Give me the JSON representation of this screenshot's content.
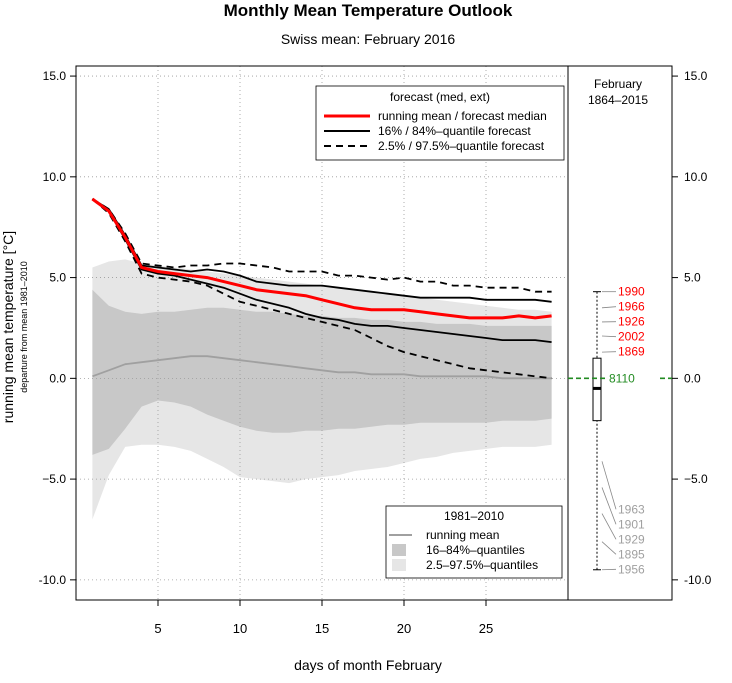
{
  "chart_data": {
    "type": "line",
    "title": "Monthly Mean Temperature Outlook",
    "subtitle": "Swiss mean: February 2016",
    "xlabel": "days of month February",
    "ylabel": "running mean temperature [°C]",
    "ylabel_sub": "departure from mean 1981–2010",
    "xlim": [
      0,
      30
    ],
    "ylim": [
      -11,
      15.5
    ],
    "xticks": [
      5,
      10,
      15,
      20,
      25
    ],
    "yticks": [
      -10,
      -5,
      0,
      5,
      10,
      15
    ],
    "ytick_labels": [
      "-10.0",
      "−5.0",
      "0.0",
      "5.0",
      "10.0",
      "15.0"
    ],
    "grid": true,
    "forecast_legend": {
      "title": "forecast (med, ext)",
      "entries": [
        "running mean / forecast median",
        "16% / 84%–quantile forecast",
        "2.5% / 97.5%–quantile forecast"
      ],
      "placement": "top-right"
    },
    "climate_legend": {
      "title": "1981–2010",
      "entries": [
        "running mean",
        "16–84%–quantiles",
        "2.5–97.5%–quantiles"
      ],
      "placement": "bottom-right"
    },
    "x": [
      1,
      2,
      3,
      4,
      5,
      6,
      7,
      8,
      9,
      10,
      11,
      12,
      13,
      14,
      15,
      16,
      17,
      18,
      19,
      20,
      21,
      22,
      23,
      24,
      25,
      26,
      27,
      28,
      29
    ],
    "series": [
      {
        "name": "running mean / forecast median",
        "color": "#ff0000",
        "style": "solid",
        "values": [
          8.9,
          8.3,
          7.0,
          5.5,
          5.3,
          5.2,
          5.1,
          5.0,
          4.8,
          4.6,
          4.4,
          4.3,
          4.2,
          4.1,
          3.9,
          3.7,
          3.5,
          3.4,
          3.4,
          3.4,
          3.3,
          3.2,
          3.1,
          3.0,
          3.0,
          3.0,
          3.1,
          3.0,
          3.1
        ]
      },
      {
        "name": "84% quantile forecast",
        "color": "#000000",
        "style": "solid",
        "values": [
          8.9,
          8.4,
          7.1,
          5.6,
          5.5,
          5.4,
          5.3,
          5.4,
          5.3,
          5.1,
          4.8,
          4.7,
          4.6,
          4.6,
          4.6,
          4.5,
          4.4,
          4.3,
          4.2,
          4.1,
          4.0,
          4.0,
          4.0,
          4.0,
          3.9,
          3.9,
          3.9,
          3.9,
          3.8
        ]
      },
      {
        "name": "16% quantile forecast",
        "color": "#000000",
        "style": "solid",
        "values": [
          8.9,
          8.3,
          6.9,
          5.4,
          5.2,
          5.1,
          4.9,
          4.7,
          4.5,
          4.2,
          3.9,
          3.7,
          3.5,
          3.2,
          3.0,
          2.9,
          2.7,
          2.6,
          2.6,
          2.5,
          2.4,
          2.3,
          2.2,
          2.1,
          2.0,
          1.9,
          1.9,
          1.9,
          1.8
        ]
      },
      {
        "name": "97.5% quantile forecast",
        "color": "#000000",
        "style": "dashed",
        "values": [
          8.9,
          8.4,
          7.2,
          5.7,
          5.6,
          5.5,
          5.6,
          5.6,
          5.7,
          5.7,
          5.6,
          5.5,
          5.3,
          5.3,
          5.3,
          5.1,
          5.1,
          5.0,
          4.9,
          5.0,
          4.8,
          4.8,
          4.6,
          4.6,
          4.5,
          4.5,
          4.5,
          4.3,
          4.3
        ]
      },
      {
        "name": "2.5% quantile forecast",
        "color": "#000000",
        "style": "dashed",
        "values": [
          8.9,
          8.2,
          6.8,
          5.2,
          5.0,
          4.9,
          4.8,
          4.6,
          4.2,
          3.8,
          3.6,
          3.4,
          3.2,
          3.0,
          2.8,
          2.6,
          2.4,
          2.0,
          1.6,
          1.3,
          1.1,
          0.9,
          0.7,
          0.5,
          0.4,
          0.3,
          0.2,
          0.1,
          0.0
        ]
      },
      {
        "name": "climate running mean",
        "color": "#a0a0a0",
        "style": "solid",
        "values": [
          0.1,
          0.4,
          0.7,
          0.8,
          0.9,
          1.0,
          1.1,
          1.1,
          1.0,
          0.9,
          0.8,
          0.7,
          0.6,
          0.5,
          0.4,
          0.3,
          0.3,
          0.2,
          0.2,
          0.2,
          0.1,
          0.1,
          0.1,
          0.1,
          0.1,
          0.0,
          0.0,
          0.0,
          0.0
        ]
      }
    ],
    "bands": [
      {
        "name": "2.5–97.5%–quantiles",
        "color": "#e6e6e6",
        "upper": [
          5.5,
          5.8,
          5.9,
          5.7,
          5.6,
          5.5,
          5.4,
          5.3,
          5.2,
          5.1,
          5.0,
          4.9,
          4.8,
          4.7,
          4.6,
          4.5,
          4.4,
          4.3,
          4.2,
          4.1,
          4.0,
          3.9,
          3.8,
          3.7,
          3.6,
          3.5,
          3.4,
          3.4,
          3.3
        ],
        "lower": [
          -7.0,
          -4.8,
          -3.4,
          -3.3,
          -3.3,
          -3.4,
          -3.6,
          -4.0,
          -4.4,
          -4.9,
          -5.0,
          -5.1,
          -5.2,
          -5.0,
          -4.9,
          -4.8,
          -4.6,
          -4.5,
          -4.4,
          -4.2,
          -4.0,
          -3.9,
          -3.7,
          -3.6,
          -3.5,
          -3.4,
          -3.4,
          -3.4,
          -3.3
        ]
      },
      {
        "name": "16–84%–quantiles",
        "color": "#c8c8c8",
        "upper": [
          4.4,
          3.6,
          3.3,
          3.2,
          3.3,
          3.3,
          3.4,
          3.5,
          3.5,
          3.4,
          3.3,
          3.3,
          3.2,
          3.1,
          3.1,
          3.0,
          3.0,
          2.9,
          2.9,
          2.8,
          2.8,
          2.7,
          2.7,
          2.7,
          2.6,
          2.6,
          2.6,
          2.6,
          2.6
        ],
        "lower": [
          -3.8,
          -3.5,
          -2.5,
          -1.4,
          -1.1,
          -1.2,
          -1.4,
          -1.8,
          -2.1,
          -2.4,
          -2.6,
          -2.7,
          -2.7,
          -2.6,
          -2.6,
          -2.5,
          -2.5,
          -2.4,
          -2.3,
          -2.3,
          -2.2,
          -2.2,
          -2.2,
          -2.2,
          -2.2,
          -2.1,
          -2.1,
          -2.1,
          -2.0
        ]
      }
    ],
    "side_panel": {
      "title_line1": "February",
      "title_line2": "1864–2015",
      "boxplot": {
        "whisker_high": 4.3,
        "q3": 1.0,
        "median": -0.5,
        "q1": -2.1,
        "whisker_low": -9.5
      },
      "current_value": 0.0,
      "current_label": "8110",
      "current_color": "#228b22",
      "warm_years": [
        {
          "label": "1990",
          "value": 4.3
        },
        {
          "label": "1966",
          "value": 3.5
        },
        {
          "label": "1926",
          "value": 2.8
        },
        {
          "label": "2002",
          "value": 2.1
        },
        {
          "label": "1869",
          "value": 1.3
        }
      ],
      "cold_years": [
        {
          "label": "1963",
          "value": -6.5
        },
        {
          "label": "1901",
          "value": -7.2
        },
        {
          "label": "1929",
          "value": -7.9
        },
        {
          "label": "1895",
          "value": -8.7
        },
        {
          "label": "1956",
          "value": -9.5
        }
      ],
      "warm_color": "#ff0000",
      "cold_color": "#a0a0a0"
    }
  }
}
